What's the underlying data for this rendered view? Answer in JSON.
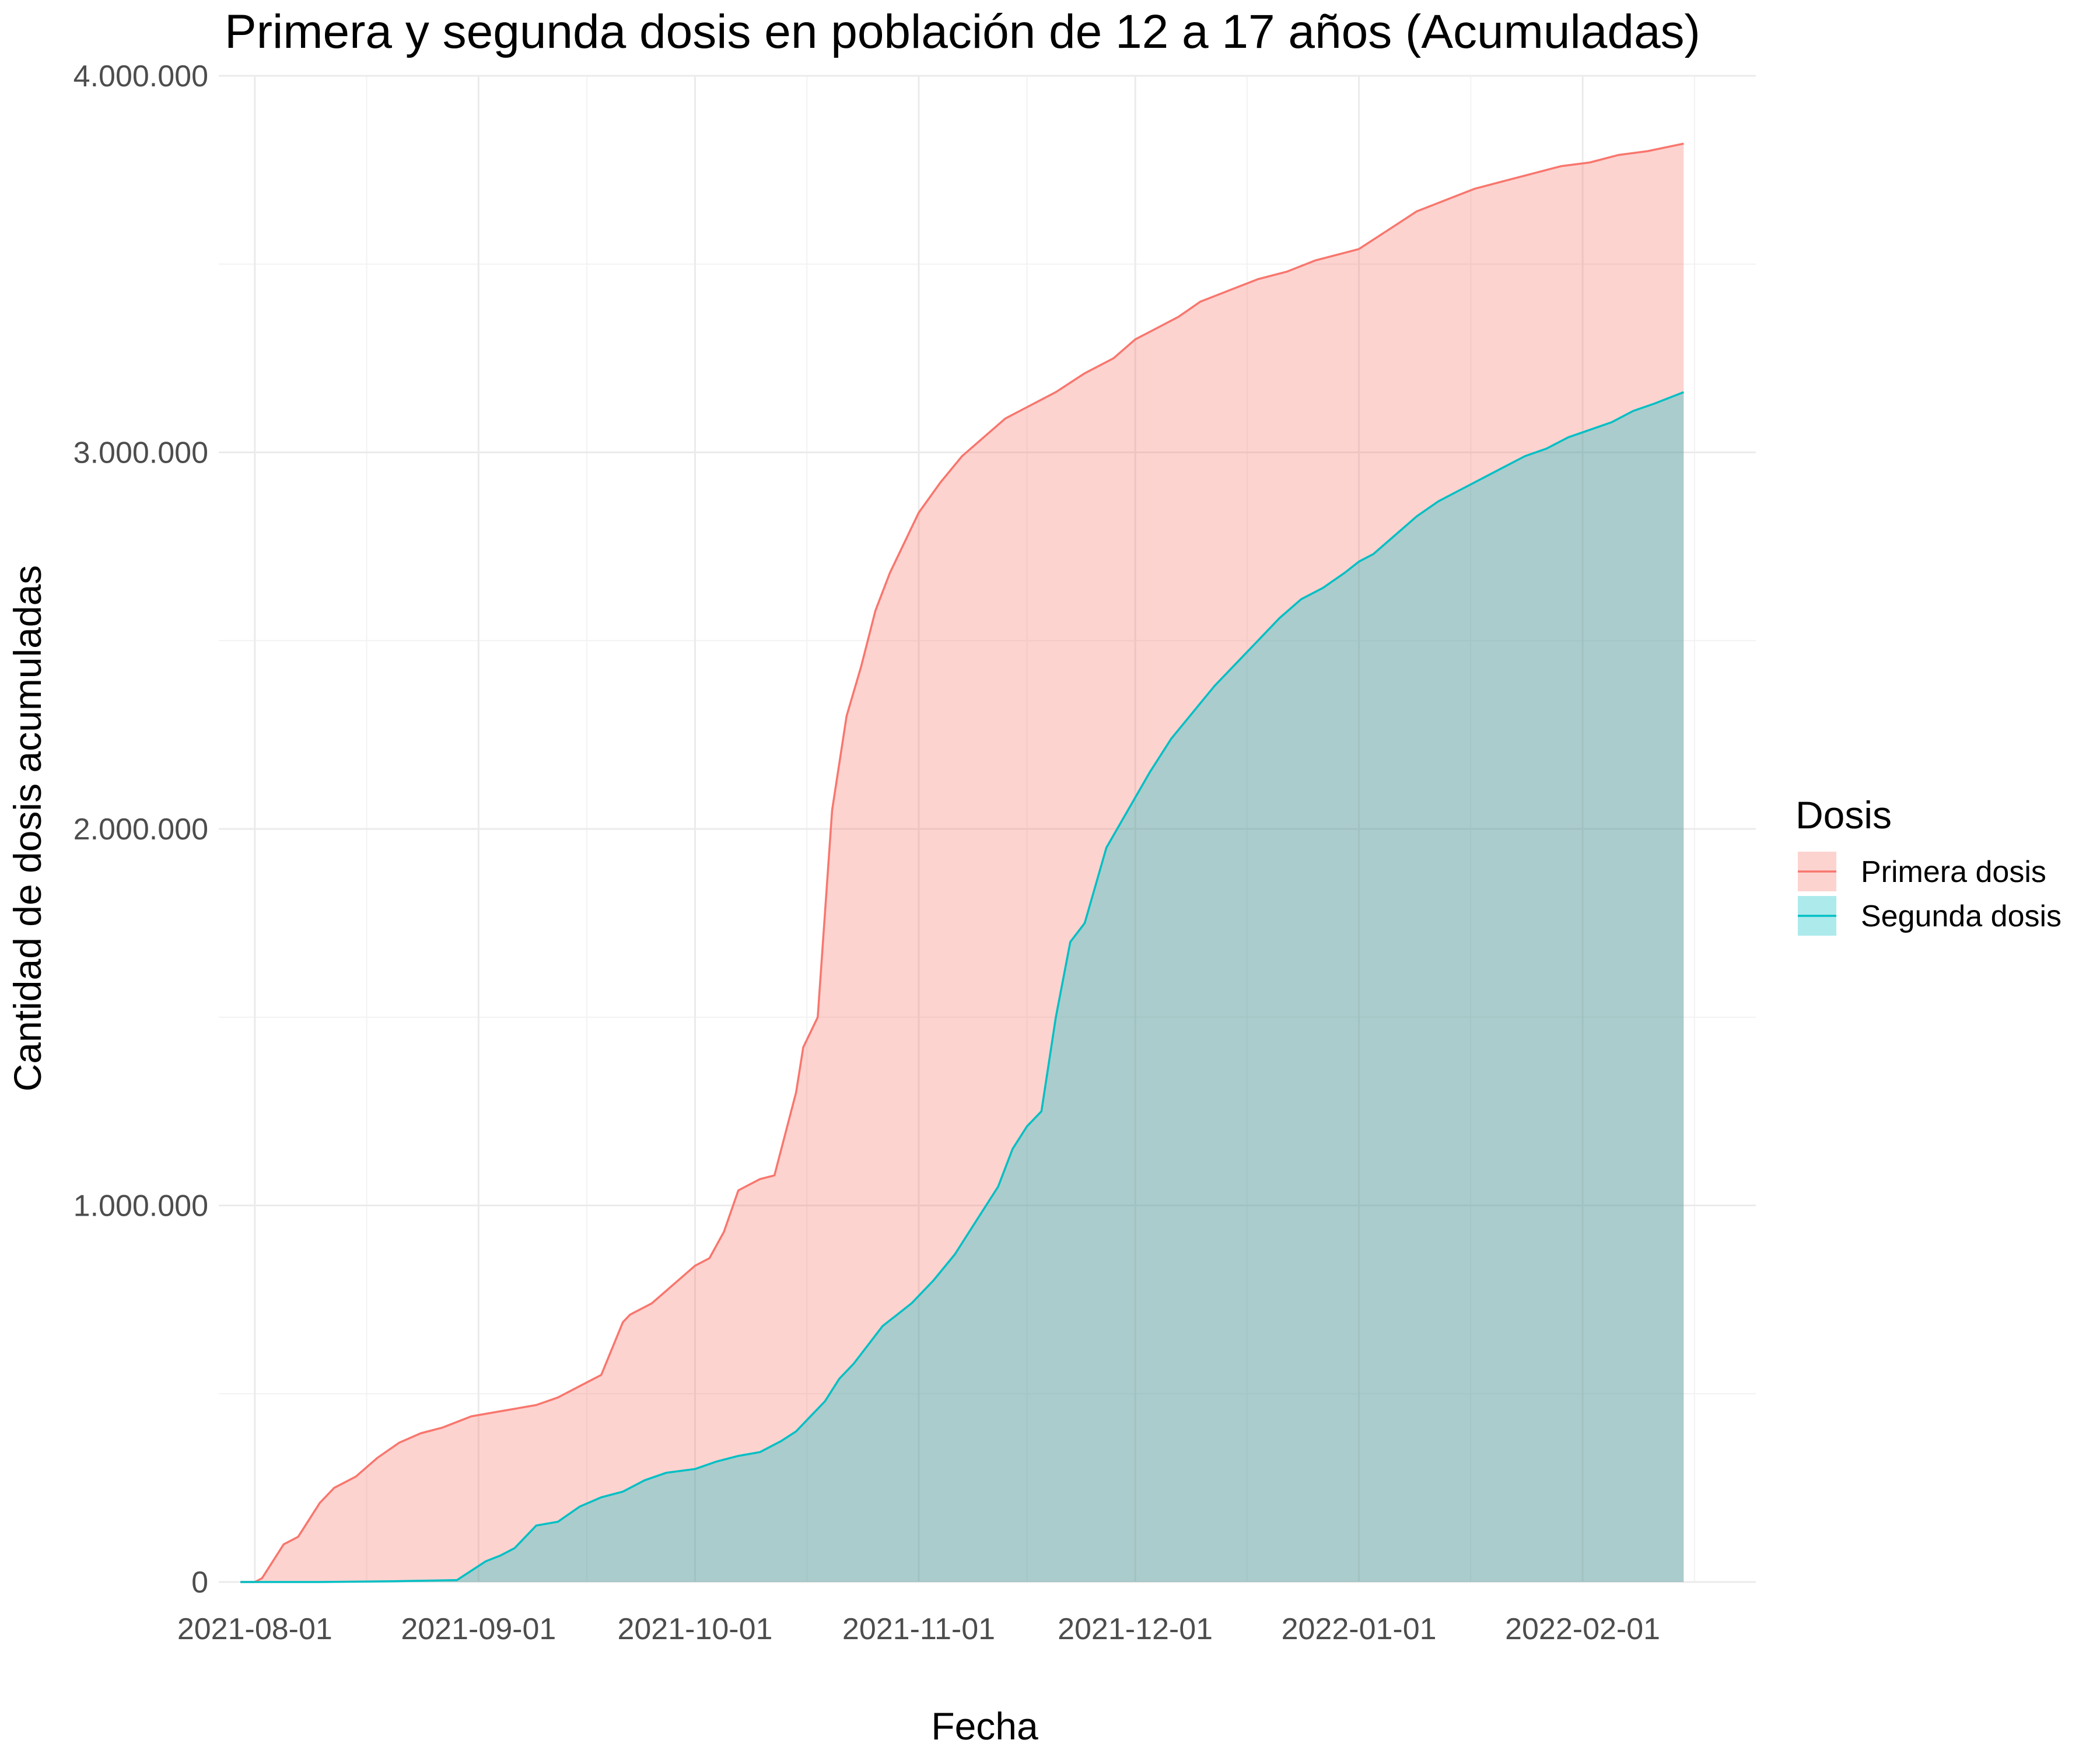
{
  "chart_data": {
    "type": "area",
    "title": "Primera y segunda dosis en población de 12 a 17 años (Acumuladas)",
    "xlabel": "Fecha",
    "ylabel": "Cantidad de dosis acumuladas",
    "ylim": [
      0,
      4000000
    ],
    "xlim": [
      "2021-07-27",
      "2022-02-25"
    ],
    "y_ticks": [
      0,
      1000000,
      2000000,
      3000000,
      4000000
    ],
    "y_tick_labels": [
      "0",
      "1.000.000",
      "2.000.000",
      "3.000.000",
      "4.000.000"
    ],
    "x_ticks": [
      "2021-08-01",
      "2021-09-01",
      "2021-10-01",
      "2021-11-01",
      "2021-12-01",
      "2022-01-01",
      "2022-02-01"
    ],
    "grid": true,
    "legend": {
      "title": "Dosis",
      "position": "right"
    },
    "series": [
      {
        "name": "Primera dosis",
        "line_color": "#F8766D",
        "fill_color": "#F8766D",
        "fill_opacity": 0.32,
        "x": [
          "2021-07-30",
          "2021-08-01",
          "2021-08-02",
          "2021-08-05",
          "2021-08-07",
          "2021-08-10",
          "2021-08-12",
          "2021-08-15",
          "2021-08-18",
          "2021-08-21",
          "2021-08-24",
          "2021-08-27",
          "2021-08-31",
          "2021-09-03",
          "2021-09-06",
          "2021-09-09",
          "2021-09-12",
          "2021-09-15",
          "2021-09-18",
          "2021-09-21",
          "2021-09-22",
          "2021-09-25",
          "2021-09-28",
          "2021-10-01",
          "2021-10-03",
          "2021-10-05",
          "2021-10-07",
          "2021-10-10",
          "2021-10-12",
          "2021-10-15",
          "2021-10-16",
          "2021-10-18",
          "2021-10-20",
          "2021-10-22",
          "2021-10-24",
          "2021-10-26",
          "2021-10-28",
          "2021-10-31",
          "2021-11-01",
          "2021-11-04",
          "2021-11-07",
          "2021-11-10",
          "2021-11-13",
          "2021-11-16",
          "2021-11-20",
          "2021-11-24",
          "2021-11-28",
          "2021-12-01",
          "2021-12-04",
          "2021-12-07",
          "2021-12-10",
          "2021-12-14",
          "2021-12-18",
          "2021-12-22",
          "2021-12-26",
          "2021-12-30",
          "2022-01-01",
          "2022-01-05",
          "2022-01-09",
          "2022-01-13",
          "2022-01-17",
          "2022-01-21",
          "2022-01-25",
          "2022-01-29",
          "2022-02-02",
          "2022-02-06",
          "2022-02-10",
          "2022-02-15"
        ],
        "values": [
          0,
          0,
          10000,
          100000,
          120000,
          210000,
          250000,
          280000,
          330000,
          370000,
          395000,
          410000,
          440000,
          450000,
          460000,
          470000,
          490000,
          520000,
          550000,
          690000,
          710000,
          740000,
          790000,
          840000,
          860000,
          930000,
          1040000,
          1070000,
          1080000,
          1300000,
          1420000,
          1500000,
          2050000,
          2300000,
          2430000,
          2580000,
          2680000,
          2800000,
          2840000,
          2920000,
          2990000,
          3040000,
          3090000,
          3120000,
          3160000,
          3210000,
          3250000,
          3300000,
          3330000,
          3360000,
          3400000,
          3430000,
          3460000,
          3480000,
          3510000,
          3530000,
          3540000,
          3590000,
          3640000,
          3670000,
          3700000,
          3720000,
          3740000,
          3760000,
          3770000,
          3790000,
          3800000,
          3820000
        ]
      },
      {
        "name": "Segunda dosis",
        "line_color": "#00BFC4",
        "fill_color": "#00BFC4",
        "fill_opacity": 0.32,
        "x": [
          "2021-07-30",
          "2021-08-10",
          "2021-08-20",
          "2021-08-29",
          "2021-08-31",
          "2021-09-02",
          "2021-09-04",
          "2021-09-06",
          "2021-09-09",
          "2021-09-12",
          "2021-09-15",
          "2021-09-18",
          "2021-09-21",
          "2021-09-24",
          "2021-09-27",
          "2021-10-01",
          "2021-10-04",
          "2021-10-07",
          "2021-10-10",
          "2021-10-13",
          "2021-10-15",
          "2021-10-17",
          "2021-10-19",
          "2021-10-21",
          "2021-10-23",
          "2021-10-25",
          "2021-10-27",
          "2021-10-29",
          "2021-10-31",
          "2021-11-03",
          "2021-11-06",
          "2021-11-09",
          "2021-11-12",
          "2021-11-14",
          "2021-11-16",
          "2021-11-18",
          "2021-11-20",
          "2021-11-22",
          "2021-11-24",
          "2021-11-27",
          "2021-11-30",
          "2021-12-03",
          "2021-12-06",
          "2021-12-09",
          "2021-12-12",
          "2021-12-15",
          "2021-12-18",
          "2021-12-21",
          "2021-12-24",
          "2021-12-27",
          "2021-12-30",
          "2022-01-01",
          "2022-01-03",
          "2022-01-06",
          "2022-01-09",
          "2022-01-12",
          "2022-01-15",
          "2022-01-18",
          "2022-01-21",
          "2022-01-24",
          "2022-01-27",
          "2022-01-30",
          "2022-02-02",
          "2022-02-05",
          "2022-02-08",
          "2022-02-11",
          "2022-02-15"
        ],
        "values": [
          0,
          0,
          2000,
          5000,
          30000,
          55000,
          70000,
          90000,
          150000,
          160000,
          200000,
          225000,
          240000,
          270000,
          290000,
          300000,
          320000,
          335000,
          345000,
          375000,
          400000,
          440000,
          480000,
          540000,
          580000,
          630000,
          680000,
          710000,
          740000,
          800000,
          870000,
          960000,
          1050000,
          1150000,
          1210000,
          1250000,
          1500000,
          1700000,
          1750000,
          1950000,
          2050000,
          2150000,
          2240000,
          2310000,
          2380000,
          2440000,
          2500000,
          2560000,
          2610000,
          2640000,
          2680000,
          2710000,
          2730000,
          2780000,
          2830000,
          2870000,
          2900000,
          2930000,
          2960000,
          2990000,
          3010000,
          3040000,
          3060000,
          3080000,
          3110000,
          3130000,
          3160000
        ]
      }
    ]
  }
}
